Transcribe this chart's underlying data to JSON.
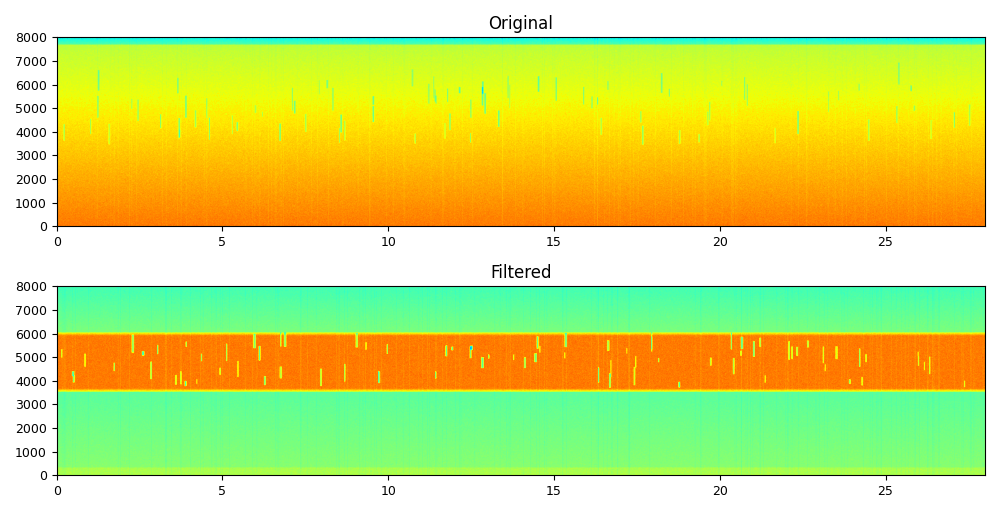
{
  "title_original": "Original",
  "title_filtered": "Filtered",
  "xlim": [
    0,
    28
  ],
  "ylim": [
    0,
    8000
  ],
  "xticks": [
    0,
    5,
    10,
    15,
    20,
    25
  ],
  "yticks": [
    0,
    1000,
    2000,
    3000,
    4000,
    5000,
    6000,
    7000,
    8000
  ],
  "figsize": [
    10.0,
    5.13
  ],
  "dpi": 100,
  "n_time": 2800,
  "n_freq": 800,
  "background_color": "#ffffff",
  "colormap": "jet"
}
